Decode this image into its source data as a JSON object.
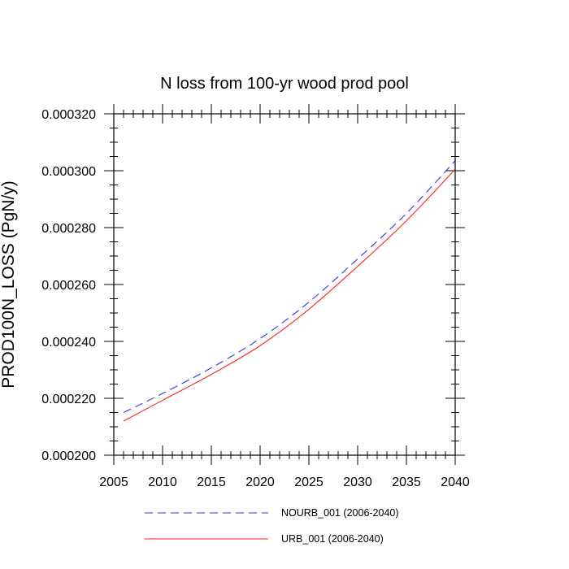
{
  "chart_data": {
    "type": "line",
    "title": "N loss from 100-yr wood prod pool",
    "xlabel": "",
    "ylabel": "PROD100N_LOSS  (PgN/y)",
    "xlim": [
      2005,
      2040
    ],
    "ylim": [
      0.0002,
      0.00032
    ],
    "x_ticks": [
      "2005",
      "2010",
      "2015",
      "2020",
      "2025",
      "2030",
      "2035",
      "2040"
    ],
    "y_ticks": [
      "0.000200",
      "0.000220",
      "0.000240",
      "0.000260",
      "0.000280",
      "0.000300",
      "0.000320"
    ],
    "x": [
      2006,
      2010,
      2015,
      2020,
      2025,
      2030,
      2035,
      2040
    ],
    "series": [
      {
        "name": "NOURB_001 (2006-2040)",
        "color": "#3333dd",
        "style": "dashed",
        "values": [
          0.000215,
          0.0002217,
          0.0002307,
          0.000241,
          0.0002538,
          0.000269,
          0.000285,
          0.0003035
        ]
      },
      {
        "name": "URB_001 (2006-2040)",
        "color": "#ff2222",
        "style": "solid",
        "values": [
          0.000212,
          0.0002193,
          0.0002284,
          0.0002385,
          0.0002513,
          0.0002664,
          0.0002824,
          0.0003005
        ]
      }
    ],
    "grid": false,
    "legend_position": "bottom"
  }
}
